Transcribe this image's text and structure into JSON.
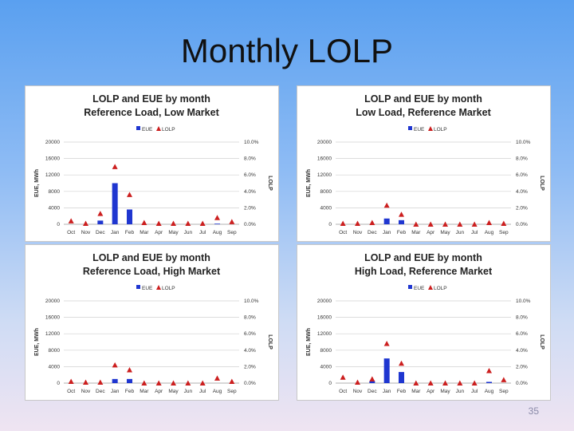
{
  "slide": {
    "title": "Monthly LOLP",
    "page_number": "35"
  },
  "colors": {
    "eue": "#1f36d0",
    "lolp": "#cc1f1f",
    "grid": "#d0d0d0",
    "axis": "#999999",
    "text": "#333333"
  },
  "chart_data": [
    {
      "type": "bar",
      "title_line1": "LOLP and EUE by month",
      "title_line2": "Reference Load, Low Market",
      "categories": [
        "Oct",
        "Nov",
        "Dec",
        "Jan",
        "Feb",
        "Mar",
        "Apr",
        "May",
        "Jun",
        "Jul",
        "Aug",
        "Sep"
      ],
      "legend": [
        "EUE",
        "LOLP"
      ],
      "ylabel": "EUE, MWh",
      "y2label": "LOLP",
      "y_ticks": [
        "0",
        "4000",
        "8000",
        "12000",
        "16000",
        "20000"
      ],
      "y2_ticks": [
        "0.0%",
        "2.0%",
        "4.0%",
        "6.0%",
        "8.0%",
        "10.0%"
      ],
      "ylim": [
        0,
        20000
      ],
      "y2lim": [
        0,
        10
      ],
      "series": [
        {
          "name": "EUE",
          "axis": "left",
          "values": [
            0,
            0,
            900,
            10000,
            3600,
            0,
            0,
            0,
            0,
            0,
            150,
            0
          ]
        },
        {
          "name": "LOLP",
          "axis": "right",
          "values": [
            0.4,
            0.1,
            1.3,
            7.0,
            3.6,
            0.2,
            0.1,
            0.1,
            0.1,
            0.1,
            0.8,
            0.3
          ]
        }
      ]
    },
    {
      "type": "bar",
      "title_line1": "LOLP and EUE by month",
      "title_line2": "Low Load, Reference Market",
      "categories": [
        "Oct",
        "Nov",
        "Dec",
        "Jan",
        "Feb",
        "Mar",
        "Apr",
        "May",
        "Jun",
        "Jul",
        "Aug",
        "Sep"
      ],
      "legend": [
        "EUE",
        "LOLP"
      ],
      "ylabel": "EUE, MWh",
      "y2label": "LOLP",
      "y_ticks": [
        "0",
        "4000",
        "8000",
        "12000",
        "16000",
        "20000"
      ],
      "y2_ticks": [
        "0.0%",
        "2.0%",
        "4.0%",
        "6.0%",
        "8.0%",
        "10.0%"
      ],
      "ylim": [
        0,
        20000
      ],
      "y2lim": [
        0,
        10
      ],
      "series": [
        {
          "name": "EUE",
          "axis": "left",
          "values": [
            0,
            0,
            0,
            1400,
            1000,
            0,
            0,
            0,
            0,
            0,
            0,
            0
          ]
        },
        {
          "name": "LOLP",
          "axis": "right",
          "values": [
            0.1,
            0.1,
            0.2,
            2.3,
            1.2,
            0.0,
            0.0,
            0.0,
            0.0,
            0.0,
            0.2,
            0.1
          ]
        }
      ]
    },
    {
      "type": "bar",
      "title_line1": "LOLP and EUE by month",
      "title_line2": "Reference Load, High Market",
      "categories": [
        "Oct",
        "Nov",
        "Dec",
        "Jan",
        "Feb",
        "Mar",
        "Apr",
        "May",
        "Jun",
        "Jul",
        "Aug",
        "Sep"
      ],
      "legend": [
        "EUE",
        "LOLP"
      ],
      "ylabel": "EUE, MWh",
      "y2label": "LOLP",
      "y_ticks": [
        "0",
        "4000",
        "8000",
        "12000",
        "16000",
        "20000"
      ],
      "y2_ticks": [
        "0.0%",
        "2.0%",
        "4.0%",
        "6.0%",
        "8.0%",
        "10.0%"
      ],
      "ylim": [
        0,
        20000
      ],
      "y2lim": [
        0,
        10
      ],
      "series": [
        {
          "name": "EUE",
          "axis": "left",
          "values": [
            0,
            0,
            0,
            1000,
            1000,
            0,
            0,
            0,
            0,
            0,
            0,
            0
          ]
        },
        {
          "name": "LOLP",
          "axis": "right",
          "values": [
            0.2,
            0.1,
            0.1,
            2.2,
            1.6,
            0.0,
            0.0,
            0.0,
            0.0,
            0.0,
            0.6,
            0.2
          ]
        }
      ]
    },
    {
      "type": "bar",
      "title_line1": "LOLP and EUE by month",
      "title_line2": "High Load, Reference Market",
      "categories": [
        "Oct",
        "Nov",
        "Dec",
        "Jan",
        "Feb",
        "Mar",
        "Apr",
        "May",
        "Jun",
        "Jul",
        "Aug",
        "Sep"
      ],
      "legend": [
        "EUE",
        "LOLP"
      ],
      "ylabel": "EUE, MWh",
      "y2label": "LOLP",
      "y_ticks": [
        "0",
        "4000",
        "8000",
        "12000",
        "16000",
        "20000"
      ],
      "y2_ticks": [
        "0.0%",
        "2.0%",
        "4.0%",
        "6.0%",
        "8.0%",
        "10.0%"
      ],
      "ylim": [
        0,
        20000
      ],
      "y2lim": [
        0,
        10
      ],
      "series": [
        {
          "name": "EUE",
          "axis": "left",
          "values": [
            0,
            0,
            500,
            6000,
            2700,
            0,
            0,
            0,
            0,
            0,
            300,
            0
          ]
        },
        {
          "name": "LOLP",
          "axis": "right",
          "values": [
            0.7,
            0.1,
            0.5,
            4.8,
            2.4,
            0.0,
            0.0,
            0.0,
            0.0,
            0.0,
            1.5,
            0.4
          ]
        }
      ]
    }
  ]
}
